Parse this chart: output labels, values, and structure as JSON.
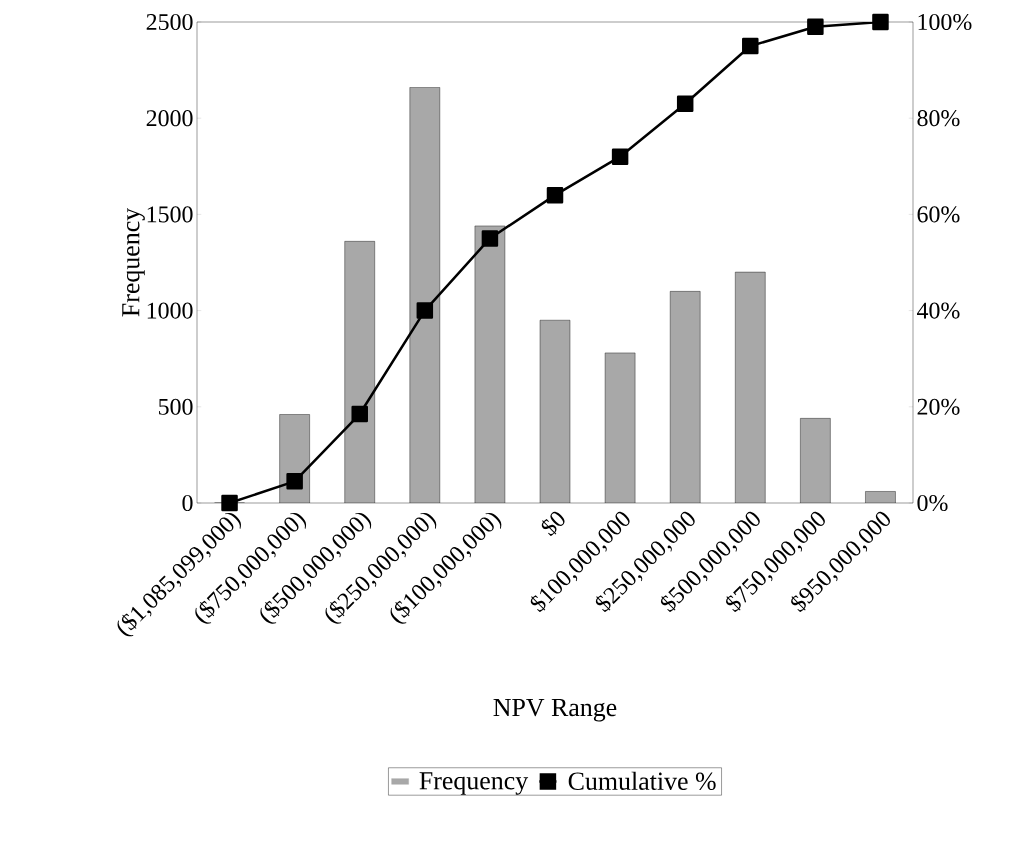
{
  "chart_data": {
    "type": "bar",
    "xlabel": "NPV Range",
    "ylabel": "Frequency",
    "categories": [
      "($1,085,099,000)",
      "($750,000,000)",
      "($500,000,000)",
      "($250,000,000)",
      "($100,000,000)",
      "$0",
      "$100,000,000",
      "$250,000,000",
      "$500,000,000",
      "$750,000,000",
      "$950,000,000"
    ],
    "series": [
      {
        "name": "Frequency",
        "color": "#a8a8a8",
        "values": [
          0,
          460,
          1360,
          2160,
          1440,
          950,
          780,
          1100,
          1200,
          440,
          60
        ]
      },
      {
        "name": "Cumulative %",
        "type": "line",
        "axis": "y2",
        "color": "#000000",
        "marker": "square",
        "values": [
          0,
          4.5,
          18.5,
          40,
          55,
          64,
          72,
          83,
          95,
          99,
          100
        ]
      }
    ],
    "ylim": [
      0,
      2500
    ],
    "yticks": [
      0,
      500,
      1000,
      1500,
      2000,
      2500
    ],
    "y2lim": [
      0,
      100
    ],
    "y2ticks": [
      {
        "value": 0,
        "label": "0%"
      },
      {
        "value": 20,
        "label": "20%"
      },
      {
        "value": 40,
        "label": "40%"
      },
      {
        "value": 60,
        "label": "60%"
      },
      {
        "value": 80,
        "label": "80%"
      },
      {
        "value": 100,
        "label": "100%"
      }
    ],
    "legend": "bottom"
  }
}
